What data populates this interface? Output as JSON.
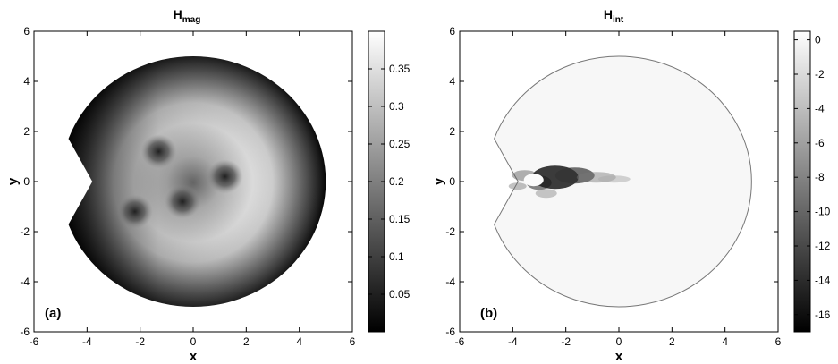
{
  "chart_data": [
    {
      "type": "heatmap",
      "panel_label": "(a)",
      "title": "H",
      "title_subscript": "mag",
      "xlabel": "x",
      "ylabel": "y",
      "xlim": [
        -6,
        6
      ],
      "ylim": [
        -6,
        6
      ],
      "x_ticks": [
        -6,
        -4,
        -2,
        0,
        2,
        4,
        6
      ],
      "y_ticks": [
        -6,
        -4,
        -2,
        0,
        2,
        4,
        6
      ],
      "domain": {
        "shape": "disk with wedge notch",
        "radius": 5,
        "notch_tip_x": -3.8,
        "notch_opening_angle_deg": 40
      },
      "colorbar": {
        "min": 0,
        "max": 0.4,
        "ticks": [
          0.05,
          0.1,
          0.15,
          0.2,
          0.25,
          0.3,
          0.35
        ],
        "colormap": "gray"
      },
      "features": [
        {
          "description": "bright ring",
          "center": [
            0,
            0
          ],
          "radius": 2.7,
          "value": 0.38
        },
        {
          "description": "dark minimum",
          "center": [
            -1.3,
            1.2
          ],
          "value": 0.12
        },
        {
          "description": "dark minimum",
          "center": [
            1.2,
            0.2
          ],
          "value": 0.12
        },
        {
          "description": "dark minimum",
          "center": [
            -0.4,
            -0.8
          ],
          "value": 0.12
        },
        {
          "description": "dark minimum",
          "center": [
            -2.2,
            -1.2
          ],
          "value": 0.12
        }
      ]
    },
    {
      "type": "heatmap",
      "panel_label": "(b)",
      "title": "H",
      "title_subscript": "int",
      "xlabel": "x",
      "ylabel": "y",
      "xlim": [
        -6,
        6
      ],
      "ylim": [
        -6,
        6
      ],
      "x_ticks": [
        -6,
        -4,
        -2,
        0,
        2,
        4,
        6
      ],
      "y_ticks": [
        -6,
        -4,
        -2,
        0,
        2,
        4,
        6
      ],
      "domain": {
        "shape": "disk with wedge notch",
        "radius": 5,
        "notch_tip_x": -3.8,
        "notch_opening_angle_deg": 40
      },
      "colorbar": {
        "min": -17,
        "max": 0.5,
        "ticks": [
          0,
          -2,
          -4,
          -6,
          -8,
          -10,
          -12,
          -14,
          -16
        ],
        "colormap": "gray"
      },
      "features": [
        {
          "description": "dark streak near notch",
          "center": [
            -2.2,
            0.1
          ],
          "value": -16
        }
      ]
    }
  ]
}
